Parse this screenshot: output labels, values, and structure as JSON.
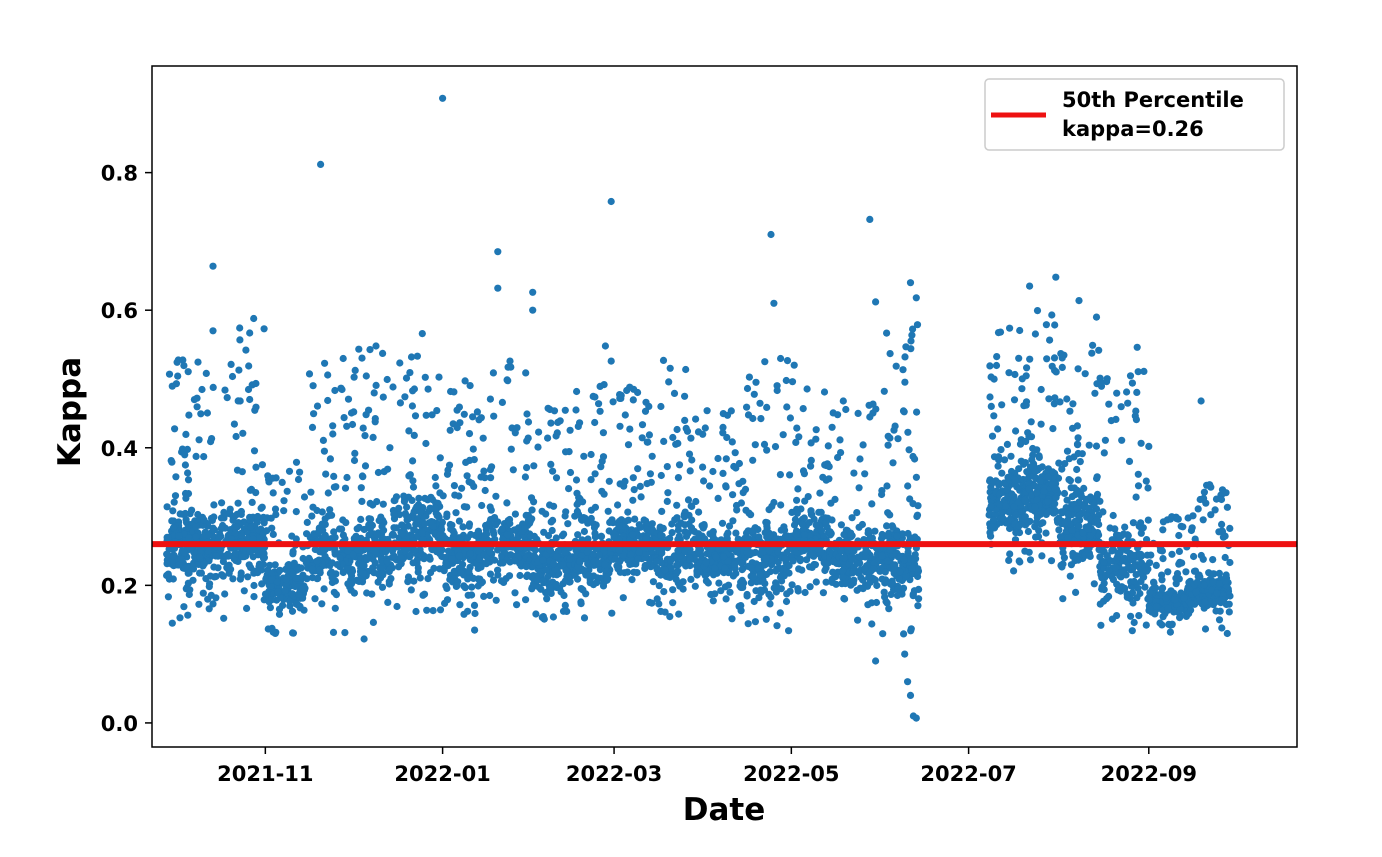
{
  "chart_data": {
    "type": "scatter",
    "title": "",
    "xlabel": "Date",
    "ylabel": "Kappa",
    "x_axis_type": "date",
    "xlim": [
      "2021-09-23",
      "2022-10-22"
    ],
    "ylim": [
      -0.035,
      0.955
    ],
    "xticks": [
      {
        "value": "2021-11-01",
        "label": "2021-11"
      },
      {
        "value": "2022-01-01",
        "label": "2022-01"
      },
      {
        "value": "2022-03-01",
        "label": "2022-03"
      },
      {
        "value": "2022-05-01",
        "label": "2022-05"
      },
      {
        "value": "2022-07-01",
        "label": "2022-07"
      },
      {
        "value": "2022-09-01",
        "label": "2022-09"
      }
    ],
    "yticks": [
      {
        "value": 0.0,
        "label": "0.0"
      },
      {
        "value": 0.2,
        "label": "0.2"
      },
      {
        "value": 0.4,
        "label": "0.4"
      },
      {
        "value": 0.6,
        "label": "0.6"
      },
      {
        "value": 0.8,
        "label": "0.8"
      }
    ],
    "grid": false,
    "legend": {
      "placement": "top-right",
      "entries": [
        {
          "label_line1": "50th Percentile",
          "label_line2": "kappa=0.26",
          "color": "#ee1111"
        }
      ]
    },
    "reference_line": {
      "name": "50th Percentile",
      "y": 0.26,
      "color": "#ee1111"
    },
    "series": [
      {
        "color": "#1f77b4",
        "points": [
          {
            "x": "2021-11-20",
            "y": 0.812
          },
          {
            "x": "2022-01-01",
            "y": 0.908
          },
          {
            "x": "2022-02-28",
            "y": 0.758
          },
          {
            "x": "2022-05-28",
            "y": 0.732
          },
          {
            "x": "2022-04-24",
            "y": 0.71
          },
          {
            "x": "2021-10-14",
            "y": 0.664
          },
          {
            "x": "2022-01-20",
            "y": 0.685
          },
          {
            "x": "2022-01-20",
            "y": 0.632
          },
          {
            "x": "2022-02-01",
            "y": 0.626
          },
          {
            "x": "2022-02-01",
            "y": 0.6
          },
          {
            "x": "2022-04-25",
            "y": 0.61
          },
          {
            "x": "2022-06-11",
            "y": 0.64
          },
          {
            "x": "2022-06-13",
            "y": 0.618
          },
          {
            "x": "2022-05-30",
            "y": 0.612
          },
          {
            "x": "2022-07-22",
            "y": 0.635
          },
          {
            "x": "2022-07-31",
            "y": 0.648
          },
          {
            "x": "2022-08-08",
            "y": 0.614
          },
          {
            "x": "2022-08-14",
            "y": 0.59
          },
          {
            "x": "2022-08-28",
            "y": 0.546
          },
          {
            "x": "2021-10-28",
            "y": 0.588
          },
          {
            "x": "2021-10-14",
            "y": 0.57
          },
          {
            "x": "2021-12-25",
            "y": 0.566
          },
          {
            "x": "2022-02-26",
            "y": 0.548
          },
          {
            "x": "2022-02-28",
            "y": 0.526
          },
          {
            "x": "2022-03-18",
            "y": 0.527
          },
          {
            "x": "2022-05-02",
            "y": 0.52
          },
          {
            "x": "2022-06-12",
            "y": 0.01
          },
          {
            "x": "2022-06-13",
            "y": 0.007
          },
          {
            "x": "2022-06-11",
            "y": 0.04
          },
          {
            "x": "2022-06-10",
            "y": 0.06
          },
          {
            "x": "2022-06-09",
            "y": 0.1
          },
          {
            "x": "2022-05-30",
            "y": 0.09
          },
          {
            "x": "2022-01-12",
            "y": 0.135
          },
          {
            "x": "2021-12-05",
            "y": 0.122
          },
          {
            "x": "2021-09-30",
            "y": 0.145
          },
          {
            "x": "2022-09-28",
            "y": 0.13
          },
          {
            "x": "2022-09-01",
            "y": 0.402
          },
          {
            "x": "2022-09-19",
            "y": 0.468
          }
        ],
        "clusters": [
          {
            "from": "2021-09-28",
            "to": "2021-10-08",
            "y_min": 0.15,
            "y_max": 0.53,
            "count": 170
          },
          {
            "from": "2021-10-08",
            "to": "2021-10-20",
            "y_min": 0.15,
            "y_max": 0.53,
            "count": 170
          },
          {
            "from": "2021-10-20",
            "to": "2021-11-01",
            "y_min": 0.14,
            "y_max": 0.58,
            "count": 170
          },
          {
            "from": "2021-11-01",
            "to": "2021-11-15",
            "y_min": 0.13,
            "y_max": 0.38,
            "count": 170
          },
          {
            "from": "2021-11-15",
            "to": "2021-12-01",
            "y_min": 0.13,
            "y_max": 0.53,
            "count": 180
          },
          {
            "from": "2021-12-01",
            "to": "2021-12-15",
            "y_min": 0.13,
            "y_max": 0.55,
            "count": 180
          },
          {
            "from": "2021-12-15",
            "to": "2022-01-01",
            "y_min": 0.16,
            "y_max": 0.56,
            "count": 220
          },
          {
            "from": "2022-01-01",
            "to": "2022-01-15",
            "y_min": 0.15,
            "y_max": 0.5,
            "count": 190
          },
          {
            "from": "2022-01-15",
            "to": "2022-02-01",
            "y_min": 0.15,
            "y_max": 0.53,
            "count": 200
          },
          {
            "from": "2022-02-01",
            "to": "2022-02-15",
            "y_min": 0.14,
            "y_max": 0.46,
            "count": 200
          },
          {
            "from": "2022-02-15",
            "to": "2022-03-01",
            "y_min": 0.14,
            "y_max": 0.5,
            "count": 200
          },
          {
            "from": "2022-03-01",
            "to": "2022-03-15",
            "y_min": 0.17,
            "y_max": 0.49,
            "count": 200
          },
          {
            "from": "2022-03-15",
            "to": "2022-04-01",
            "y_min": 0.15,
            "y_max": 0.52,
            "count": 200
          },
          {
            "from": "2022-04-01",
            "to": "2022-04-15",
            "y_min": 0.15,
            "y_max": 0.47,
            "count": 190
          },
          {
            "from": "2022-04-15",
            "to": "2022-05-01",
            "y_min": 0.13,
            "y_max": 0.53,
            "count": 200
          },
          {
            "from": "2022-05-01",
            "to": "2022-05-15",
            "y_min": 0.18,
            "y_max": 0.51,
            "count": 190
          },
          {
            "from": "2022-05-15",
            "to": "2022-06-01",
            "y_min": 0.14,
            "y_max": 0.48,
            "count": 190
          },
          {
            "from": "2022-06-01",
            "to": "2022-06-14",
            "y_min": 0.1,
            "y_max": 0.58,
            "count": 180
          },
          {
            "from": "2022-07-08",
            "to": "2022-07-20",
            "y_min": 0.22,
            "y_max": 0.58,
            "count": 200
          },
          {
            "from": "2022-07-20",
            "to": "2022-08-01",
            "y_min": 0.23,
            "y_max": 0.6,
            "count": 220
          },
          {
            "from": "2022-08-01",
            "to": "2022-08-15",
            "y_min": 0.18,
            "y_max": 0.55,
            "count": 210
          },
          {
            "from": "2022-08-15",
            "to": "2022-09-01",
            "y_min": 0.13,
            "y_max": 0.52,
            "count": 200
          },
          {
            "from": "2022-09-01",
            "to": "2022-09-15",
            "y_min": 0.13,
            "y_max": 0.3,
            "count": 190
          },
          {
            "from": "2022-09-15",
            "to": "2022-09-29",
            "y_min": 0.13,
            "y_max": 0.35,
            "count": 190
          }
        ]
      }
    ]
  }
}
